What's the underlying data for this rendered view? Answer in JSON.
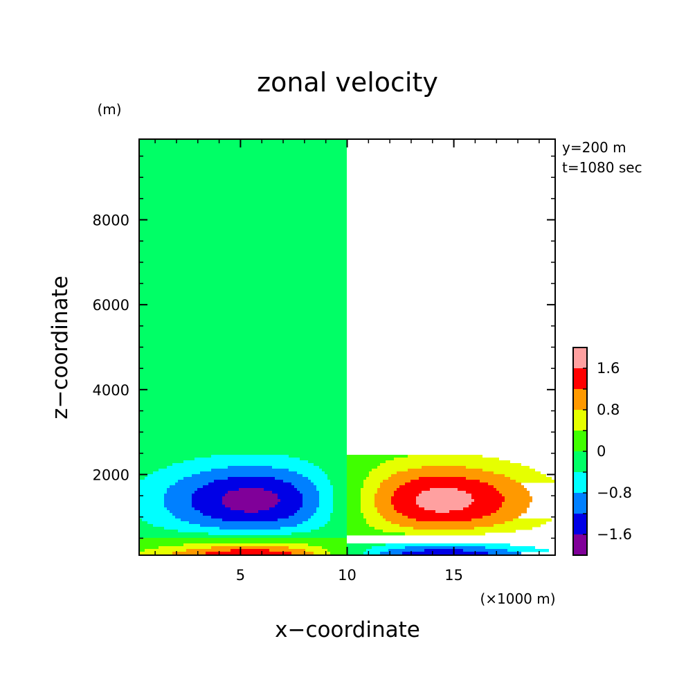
{
  "chart_data": {
    "type": "heatmap",
    "title": "zonal velocity",
    "xlabel": "x−coordinate",
    "ylabel": "z−coordinate",
    "x_unit": "(×1000 m)",
    "y_unit": "(m)",
    "annotations": [
      "y=200 m",
      "t=1080 sec"
    ],
    "xlim": [
      0.25,
      19.75
    ],
    "ylim": [
      100,
      9900
    ],
    "x_ticks": [
      {
        "value": 5,
        "label": "5"
      },
      {
        "value": 10,
        "label": "10"
      },
      {
        "value": 15,
        "label": "15"
      }
    ],
    "y_ticks": [
      {
        "value": 2000,
        "label": "2000"
      },
      {
        "value": 4000,
        "label": "4000"
      },
      {
        "value": 6000,
        "label": "6000"
      },
      {
        "value": 8000,
        "label": "8000"
      }
    ],
    "colorbar": {
      "levels": [
        -2.0,
        -1.6,
        -1.2,
        -0.8,
        -0.4,
        0.0,
        0.4,
        0.8,
        1.2,
        1.6,
        2.0
      ],
      "colors": [
        "#800099",
        "#0000e6",
        "#0080ff",
        "#00ffff",
        "#00ff66",
        "#40ff00",
        "#e6ff00",
        "#ff9900",
        "#ff0000",
        "#ffa0a0"
      ],
      "tick_labels": [
        {
          "value": -1.6,
          "label": "−1.6"
        },
        {
          "value": -0.8,
          "label": "−0.8"
        },
        {
          "value": 0.0,
          "label": "0"
        },
        {
          "value": 0.8,
          "label": "0.8"
        },
        {
          "value": 1.6,
          "label": "1.6"
        }
      ]
    },
    "features": [
      {
        "name": "left-upper-negative-cell",
        "x_center": 6.0,
        "z_center": 1400,
        "x_halfwidth": 5.0,
        "z_halfwidth": 900,
        "min_value": -1.8
      },
      {
        "name": "right-upper-positive-cell",
        "x_center": 14.0,
        "z_center": 1400,
        "x_halfwidth": 5.0,
        "z_halfwidth": 900,
        "max_value": 1.8
      },
      {
        "name": "left-surface-positive-cell",
        "x_center": 6.0,
        "z_center": 0,
        "x_halfwidth": 5.0,
        "z_halfwidth": 450,
        "max_value": 2.0
      },
      {
        "name": "right-surface-negative-cell",
        "x_center": 14.0,
        "z_center": 0,
        "x_halfwidth": 5.0,
        "z_halfwidth": 450,
        "min_value": -2.0
      }
    ]
  }
}
